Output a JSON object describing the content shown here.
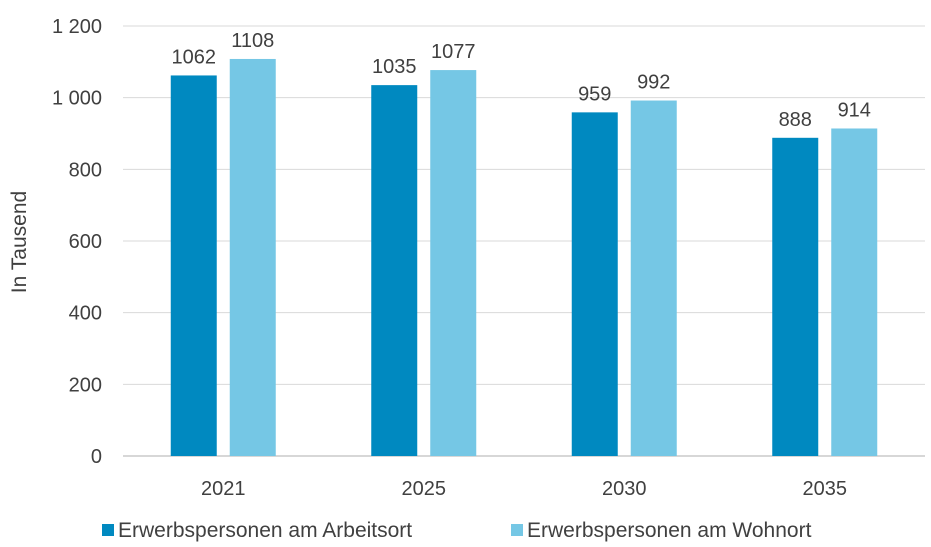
{
  "chart_data": {
    "type": "bar",
    "categories": [
      "2021",
      "2025",
      "2030",
      "2035"
    ],
    "series": [
      {
        "name": "Erwerbspersonen am Arbeitsort",
        "values": [
          1062,
          1035,
          959,
          888
        ],
        "color": "#0089c0"
      },
      {
        "name": "Erwerbspersonen am Wohnort",
        "values": [
          1108,
          1077,
          992,
          914
        ],
        "color": "#75c7e5"
      }
    ],
    "data_labels": [
      [
        "1062",
        "1035",
        "959",
        "888"
      ],
      [
        "1108",
        "1077",
        "992",
        "914"
      ]
    ],
    "ylabel": "In Tausend",
    "ylim": [
      0,
      1200
    ],
    "yticks": [
      0,
      200,
      400,
      600,
      800,
      1000,
      1200
    ],
    "ytick_labels": [
      "0",
      "200",
      "400",
      "600",
      "800",
      "1 000",
      "1 200"
    ],
    "grid": true,
    "legend_position": "bottom"
  }
}
